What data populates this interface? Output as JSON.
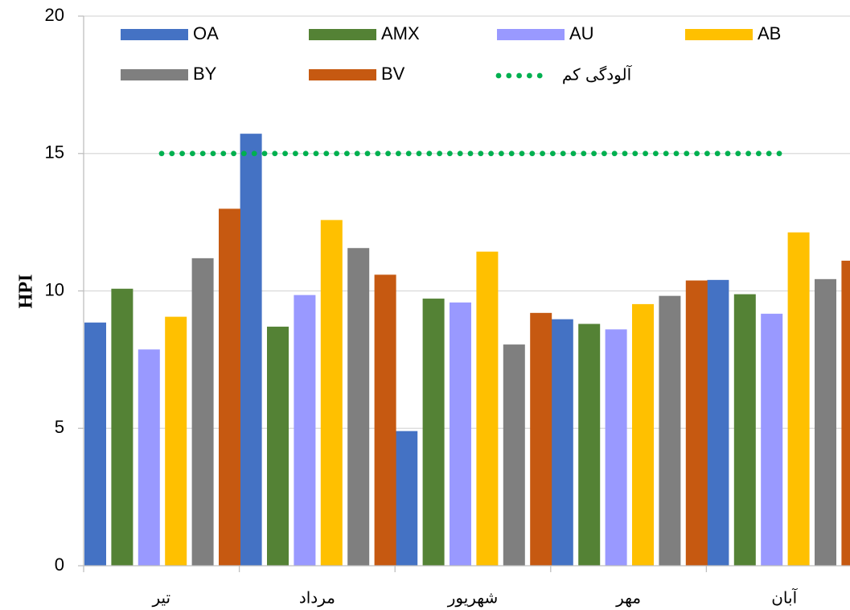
{
  "chart_data": {
    "type": "bar",
    "categories": [
      "تیر",
      "مرداد",
      "شهریور",
      "مهر",
      "آبان"
    ],
    "series": [
      {
        "name": "OA",
        "color": "#4472C4",
        "values": [
          8.85,
          15.72,
          4.9,
          8.97,
          10.4
        ]
      },
      {
        "name": "AMX",
        "color": "#548235",
        "values": [
          10.08,
          8.7,
          9.72,
          8.8,
          9.88
        ]
      },
      {
        "name": "AU",
        "color": "#9999FF",
        "values": [
          7.87,
          9.85,
          9.58,
          8.6,
          9.17
        ]
      },
      {
        "name": "AB",
        "color": "#FFC000",
        "values": [
          9.06,
          12.58,
          11.43,
          9.52,
          12.13
        ]
      },
      {
        "name": "BY",
        "color": "#7F7F7F",
        "values": [
          11.19,
          11.56,
          8.05,
          9.82,
          10.43
        ]
      },
      {
        "name": "BV",
        "color": "#C65911",
        "values": [
          12.99,
          10.59,
          9.2,
          10.38,
          11.1
        ]
      }
    ],
    "reference_line": {
      "name": "آلودگی کم",
      "value": 15,
      "color": "#00B050",
      "style": "dotted"
    },
    "ylabel": "HPI",
    "ylim": [
      0,
      20
    ],
    "yticks": [
      "0",
      "5",
      "10",
      "15",
      "20"
    ],
    "grid": true,
    "legend_position": "top"
  }
}
